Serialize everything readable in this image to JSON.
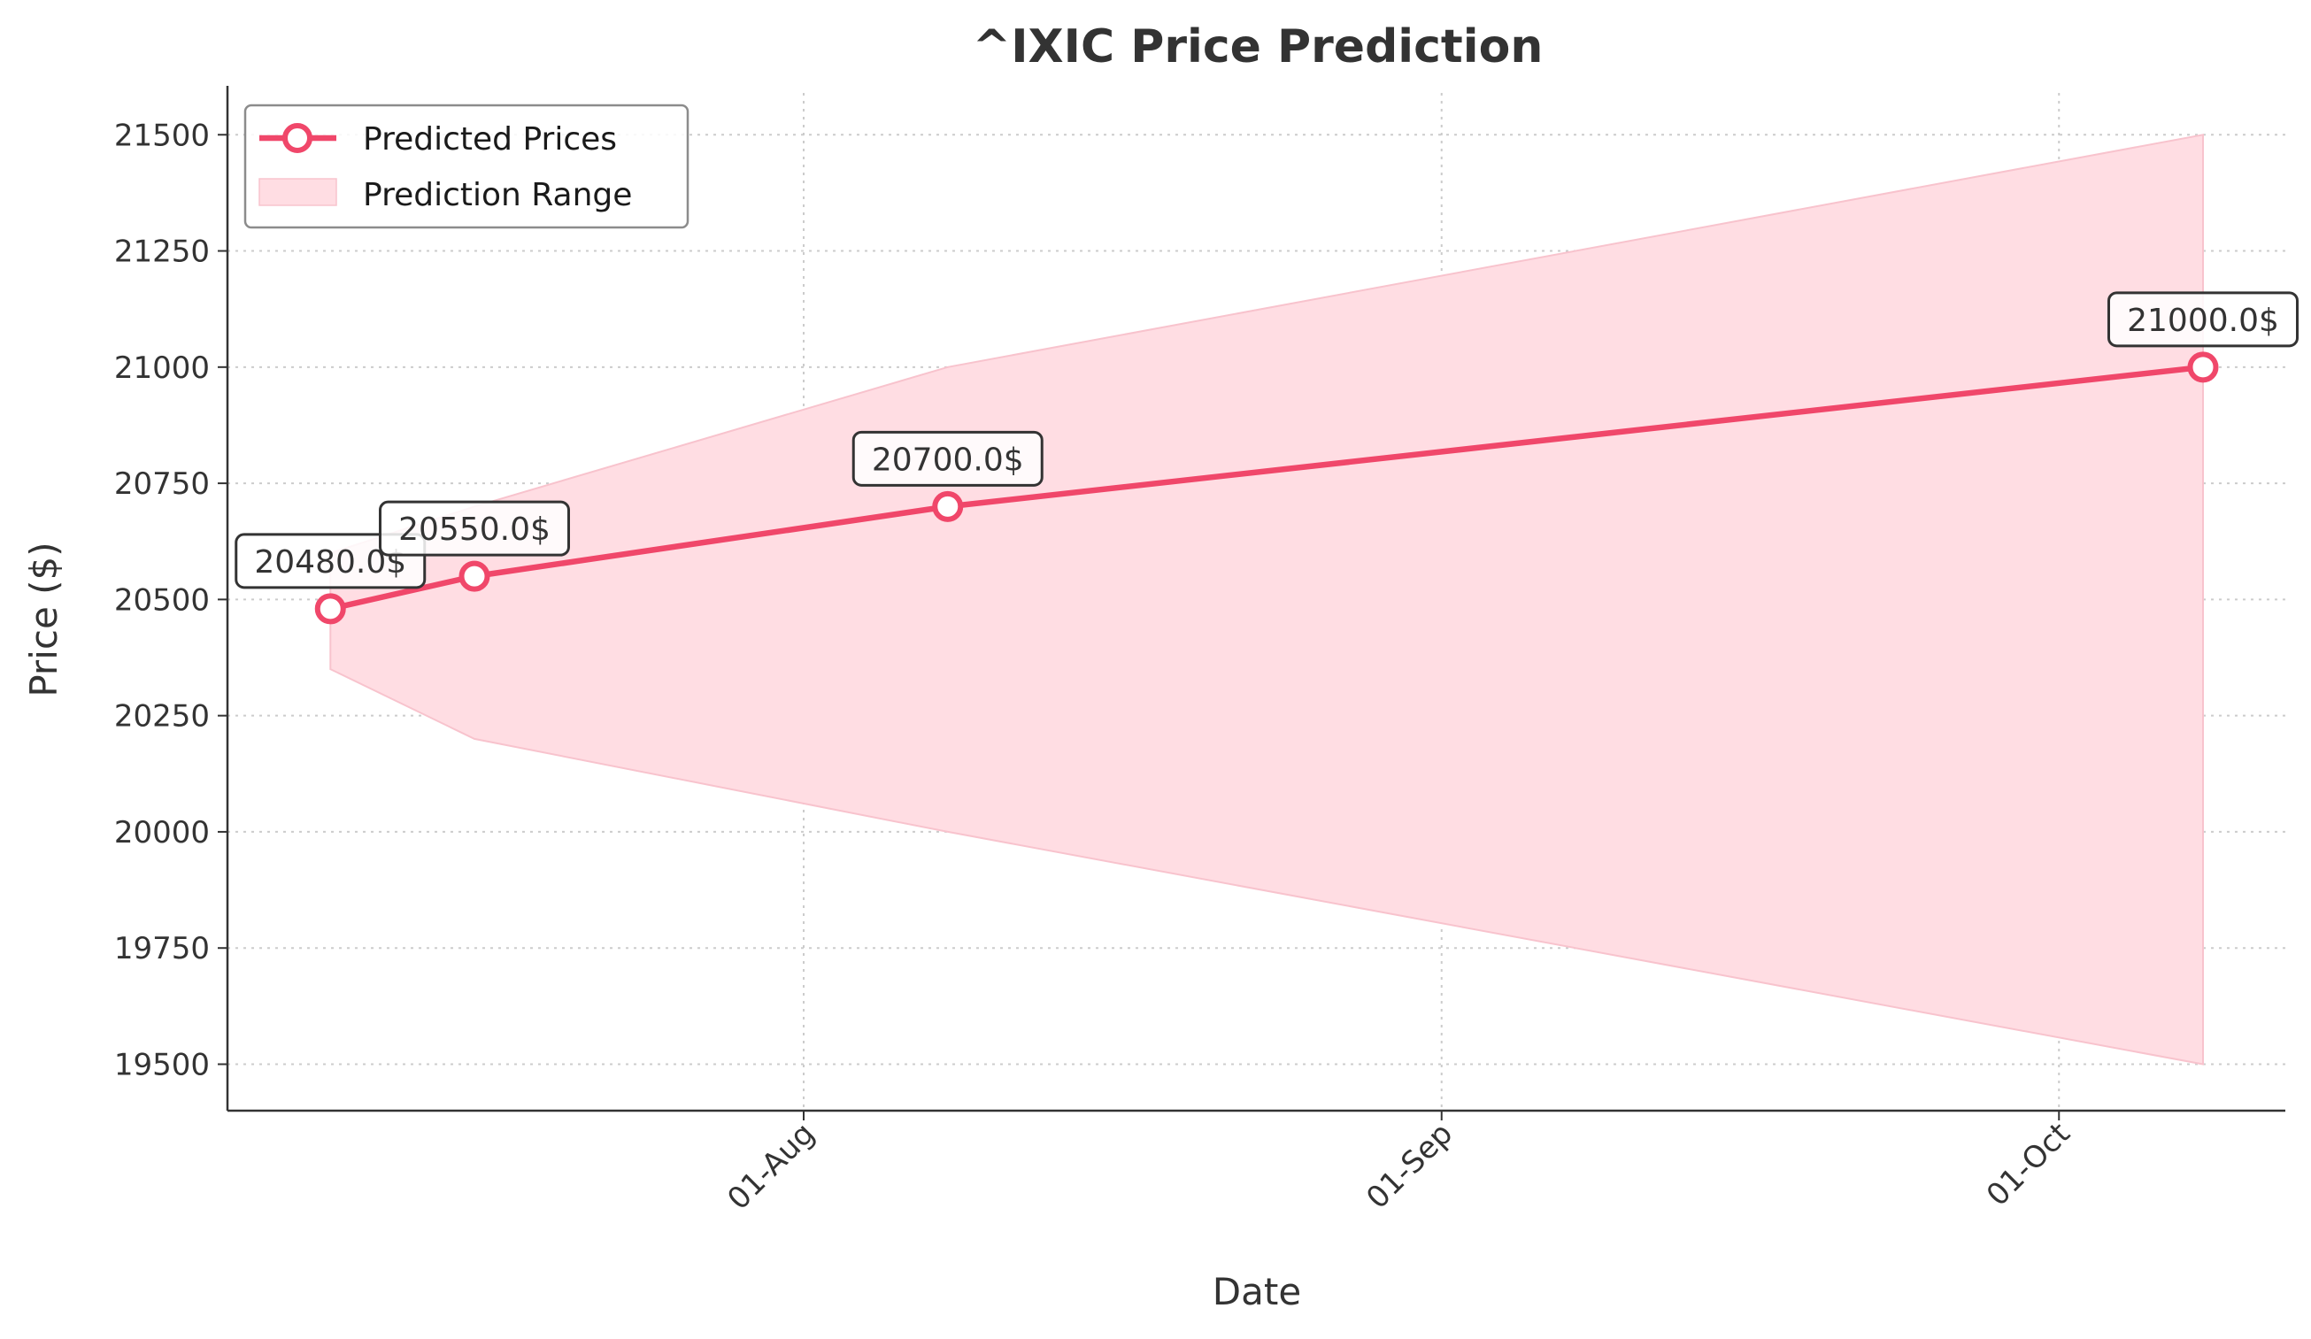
{
  "chart_data": {
    "type": "line",
    "title": "^IXIC Price Prediction",
    "xlabel": "Date",
    "ylabel": "Price ($)",
    "x_ticks": [
      {
        "date": "2024-08-01",
        "label": "01-Aug"
      },
      {
        "date": "2024-09-01",
        "label": "01-Sep"
      },
      {
        "date": "2024-10-01",
        "label": "01-Oct"
      }
    ],
    "x_range": [
      "2024-07-04",
      "2024-10-12"
    ],
    "ylim": [
      19400,
      21590
    ],
    "y_ticks": [
      19500,
      19750,
      20000,
      20250,
      20500,
      20750,
      21000,
      21250,
      21500
    ],
    "grid": "dotted, both axes",
    "legend_position": "upper left",
    "series": [
      {
        "name": "Predicted Prices",
        "color": "#f0476a",
        "points": [
          {
            "date": "2024-07-09",
            "value": 20480,
            "label": "20480.0$"
          },
          {
            "date": "2024-07-16",
            "value": 20550,
            "label": "20550.0$"
          },
          {
            "date": "2024-08-08",
            "value": 20700,
            "label": "20700.0$"
          },
          {
            "date": "2024-10-08",
            "value": 21000,
            "label": "21000.0$"
          }
        ]
      }
    ],
    "range_band": {
      "name": "Prediction Range",
      "color": "#ffdde3",
      "points": [
        {
          "date": "2024-07-09",
          "low": 20350,
          "high": 20600
        },
        {
          "date": "2024-07-16",
          "low": 20200,
          "high": 20700
        },
        {
          "date": "2024-08-08",
          "low": 20000,
          "high": 21000
        },
        {
          "date": "2024-10-08",
          "low": 19500,
          "high": 21500
        }
      ]
    }
  }
}
